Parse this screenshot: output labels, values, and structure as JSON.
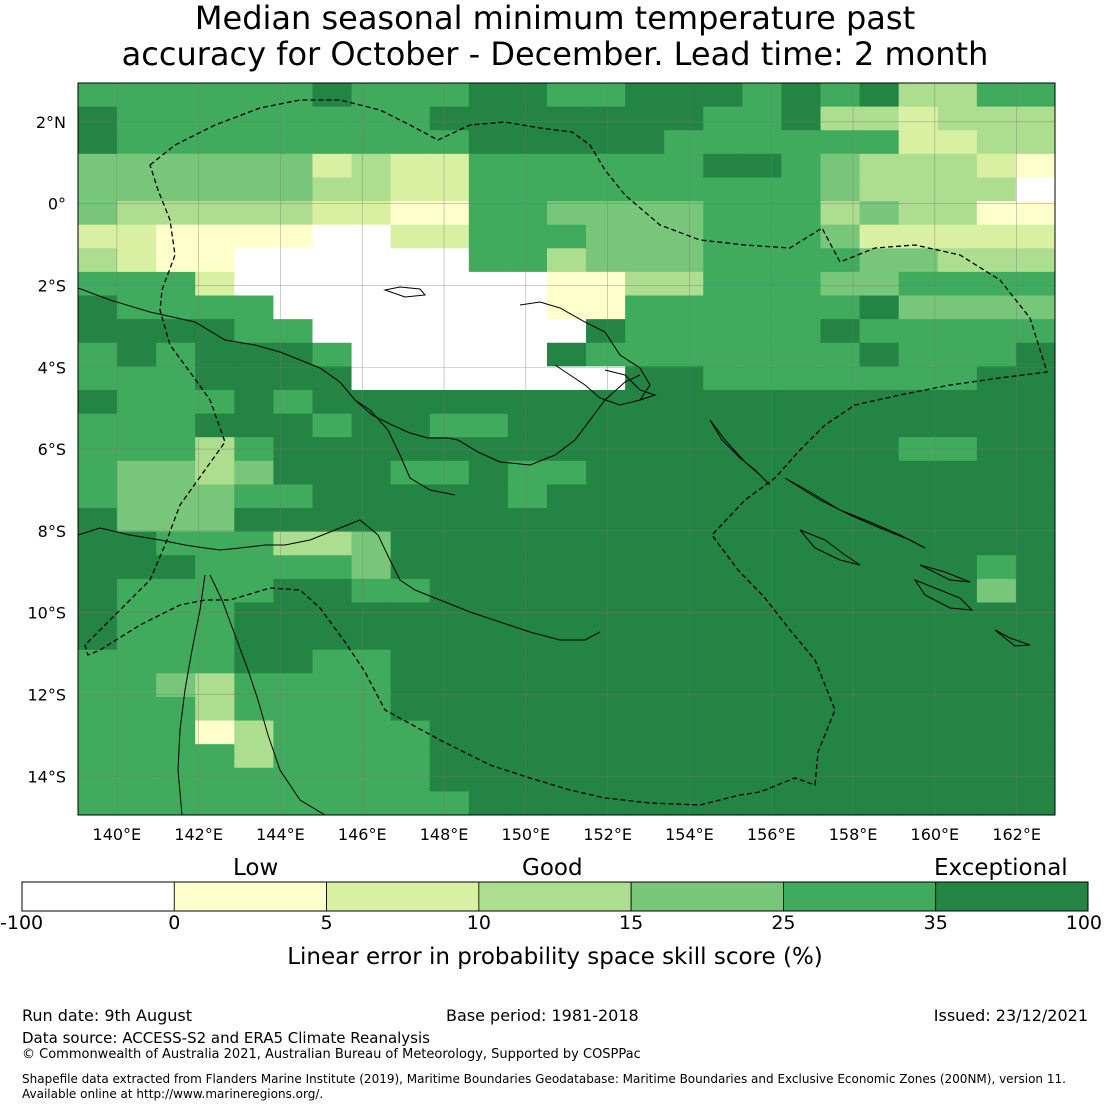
{
  "title": {
    "line1": "Median seasonal minimum temperature past",
    "line2": "accuracy for October - December. Lead time: 2 month"
  },
  "map": {
    "lat_labels": [
      "2°N",
      "0°",
      "2°S",
      "4°S",
      "6°S",
      "8°S",
      "10°S",
      "12°S",
      "14°S"
    ],
    "lon_labels": [
      "140°E",
      "142°E",
      "144°E",
      "146°E",
      "148°E",
      "150°E",
      "152°E",
      "154°E",
      "156°E",
      "158°E",
      "160°E",
      "162°E"
    ],
    "color_classes": {
      "c0": "#ffffff",
      "c1": "#ffffcc",
      "c2": "#d9f0a3",
      "c3": "#addd8e",
      "c4": "#78c679",
      "c5": "#41ab5d",
      "c6": "#238443"
    },
    "grid_rows": [
      "5555556555665566656563355",
      "6555555556666666556332333",
      "6555555555666665555552233",
      "4444442322555555665433321",
      "4444443322555555555433330",
      "4333332211554444555343311",
      "2211110022555444555422222",
      "3211000000553444555544333",
      "5552000000001133555445555",
      "6555500000001155555564444",
      "6666550000000655555655555",
      "5656665000006555555565556",
      "5556666000000066555555566",
      "6555656666666666666666666",
      "5556665665566666666666666",
      "5553566666666666666665566",
      "5443466655655666666666666",
      "5444556666656666666666666",
      "6444666666666666666666666",
      "6655533466666666666666666",
      "6665555466666666666666656",
      "6555566556666666666666646",
      "6555666666666666666666666",
      "6555666666666666666666666",
      "5555665566666666666666666",
      "5543555566666666666666666",
      "5553555566666666666666666",
      "5551355556666666666666666",
      "5555355556666666666666666",
      "5555555556666666666666666",
      "5555555555666666666666666"
    ]
  },
  "colorbar": {
    "categories": [
      "Low",
      "Good",
      "Exceptional"
    ],
    "ticks": [
      "-100",
      "0",
      "5",
      "10",
      "15",
      "25",
      "35",
      "100"
    ],
    "colors": [
      "#ffffff",
      "#ffffcc",
      "#d9f0a3",
      "#addd8e",
      "#78c679",
      "#41ab5d",
      "#238443"
    ],
    "title": "Linear error in probability space skill score (%)"
  },
  "footer": {
    "run_date": "Run date: 9th August",
    "base_period": "Base period: 1981-2018",
    "issued": "Issued: 23/12/2021",
    "data_source": "Data source: ACCESS-S2 and ERA5 Climate Reanalysis",
    "copyright": "© Commonwealth of Australia 2021, Australian Bureau of Meteorology, Supported by COSPPac",
    "shapefile_line1": "Shapefile data extracted from Flanders Marine Institute (2019), Maritime Boundaries Geodatabase: Maritime Boundaries and Exclusive Economic Zones (200NM), version 11.",
    "shapefile_line2": "Available online at http://www.marineregions.org/."
  }
}
